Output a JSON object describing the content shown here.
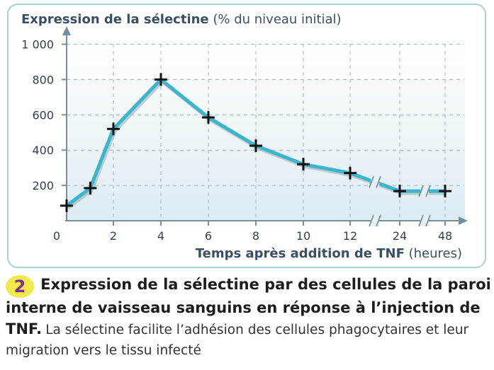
{
  "chart_data": {
    "type": "line",
    "title_bold": "Expression de la sélectine",
    "title_normal": " (% du niveau initial)",
    "xlabel_bold": "Temps après addition de TNF",
    "xlabel_normal": " (heures)",
    "ylim": [
      0,
      1000
    ],
    "y_ticks": [
      "200",
      "400",
      "600",
      "800",
      "1 000"
    ],
    "origin_label": "0",
    "x_ticks": [
      "2",
      "4",
      "6",
      "8",
      "10",
      "12",
      "24",
      "48"
    ],
    "axis_breaks": [
      "after 12 h",
      "after 24 h"
    ],
    "marker": "plus",
    "grid": true,
    "line_color": "#3ab6cc",
    "series": [
      {
        "x": [
          0,
          1,
          2,
          4,
          6,
          8,
          10,
          12,
          24,
          48
        ],
        "y": [
          85,
          185,
          520,
          800,
          585,
          425,
          320,
          270,
          168,
          168
        ]
      }
    ]
  },
  "caption": {
    "number": "2",
    "bold": "Expression de la sélectine par des cellules de la paroi interne de vaisseau sanguins en réponse à l’injection de TNF.",
    "normal": "La sélectine facilite l’adhésion des cellules phagocytaires et leur migration vers le tissu infecté"
  },
  "colors": {
    "frame": "#a9cfdc",
    "plot_bg_top": "#ffffff",
    "plot_bg_bottom": "#dcecf1",
    "axis": "#7a8d9c",
    "grid": "#a7b4bf",
    "badge": "#f2e94a",
    "badge_text": "#7b2f8f"
  }
}
